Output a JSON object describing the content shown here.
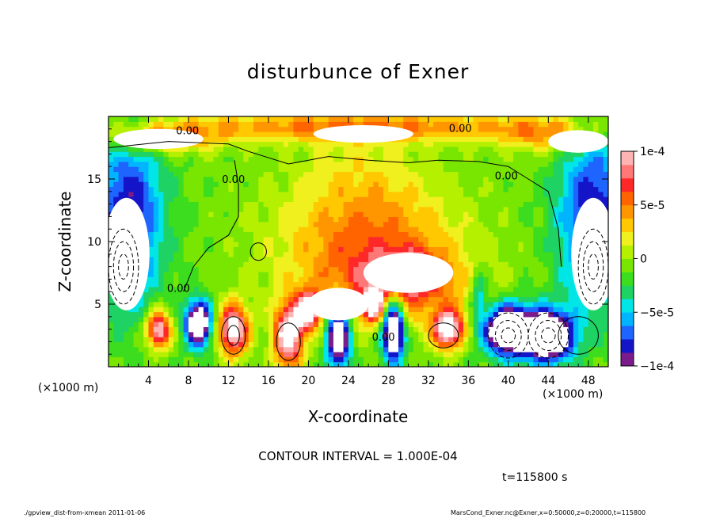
{
  "chart_data": {
    "type": "heatmap",
    "title": "disturbunce of Exner",
    "xlabel": "X-coordinate",
    "ylabel": "Z-coordinate",
    "x_unit": "(×1000 m)",
    "xlim": [
      0,
      50
    ],
    "ylim": [
      0,
      20
    ],
    "x_ticks": [
      4,
      8,
      12,
      16,
      20,
      24,
      28,
      32,
      36,
      40,
      44,
      48
    ],
    "y_ticks": [
      5,
      10,
      15
    ],
    "colorbar": {
      "range": [
        -0.0001,
        0.0001
      ],
      "tick_values": [
        0.0001,
        5e-05,
        0,
        -5e-05,
        -0.0001
      ],
      "tick_labels": [
        "1e-4",
        "5e-5",
        "0",
        "−5e-5",
        "−1e-4"
      ],
      "colors": [
        "#7a1c8c",
        "#1414c8",
        "#1e64ff",
        "#00b4ff",
        "#00e6e6",
        "#1ed264",
        "#3cdc1e",
        "#78e600",
        "#b4f000",
        "#f0f01e",
        "#ffc800",
        "#ff9600",
        "#ff6400",
        "#ff2828",
        "#ff7878",
        "#ffb4b4"
      ]
    },
    "contour_labels": [
      {
        "text": "0.00",
        "x": 7.9,
        "z": 18.8
      },
      {
        "text": "0.00",
        "x": 35.2,
        "z": 19.0
      },
      {
        "text": "0.00",
        "x": 12.5,
        "z": 14.9
      },
      {
        "text": "0.00",
        "x": 39.8,
        "z": 15.2
      },
      {
        "text": "0.00",
        "x": 7.0,
        "z": 6.2
      },
      {
        "text": "0.00",
        "x": 27.5,
        "z": 2.3
      }
    ],
    "grid": false,
    "legend": "colorbar-right"
  },
  "contour_interval": "CONTOUR INTERVAL = 1.000E-04",
  "time": "t=115800 s",
  "footer_left": "./gpview_dist-from-xmean  2011-01-06",
  "footer_right": "MarsCond_Exner.nc@Exner,x=0:50000,z=0:20000,t=115800"
}
